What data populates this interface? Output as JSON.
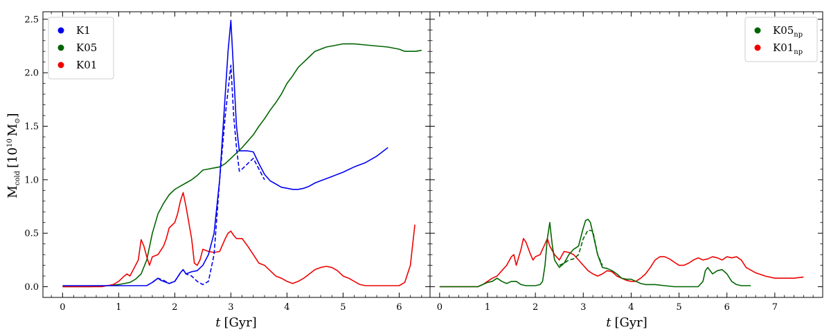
{
  "chart_data": [
    {
      "type": "line",
      "panel": "left",
      "xlabel_italic": "t",
      "xlabel_unit": "[Gyr]",
      "ylabel_main": "M",
      "ylabel_sub": "cold",
      "ylabel_unit_pre": "[10",
      "ylabel_unit_exp": "10",
      "ylabel_unit_post": "M",
      "ylabel_unit_sun": "⊙",
      "ylabel_unit_close": "]",
      "xlim": [
        -0.35,
        6.55
      ],
      "ylim": [
        -0.1,
        2.57
      ],
      "xticks": [
        0,
        1,
        2,
        3,
        4,
        5,
        6
      ],
      "xtick_labels": [
        "0",
        "1",
        "2",
        "3",
        "4",
        "5",
        "6"
      ],
      "yticks": [
        0.0,
        0.5,
        1.0,
        1.5,
        2.0,
        2.5
      ],
      "ytick_labels": [
        "0.0",
        "0.5",
        "1.0",
        "1.5",
        "2.0",
        "2.5"
      ],
      "legend_position": "upper left",
      "legend": [
        {
          "label": "K1",
          "sub": "",
          "color": "#0000ee"
        },
        {
          "label": "K05",
          "sub": "",
          "color": "#006400"
        },
        {
          "label": "K01",
          "sub": "",
          "color": "#ee0000"
        }
      ],
      "series": [
        {
          "name": "K05",
          "color": "#006400",
          "style": "solid",
          "x": [
            0,
            0.5,
            0.8,
            1.0,
            1.1,
            1.2,
            1.3,
            1.4,
            1.5,
            1.6,
            1.7,
            1.8,
            1.9,
            2.0,
            2.1,
            2.2,
            2.3,
            2.4,
            2.5,
            2.6,
            2.7,
            2.8,
            2.9,
            3.0,
            3.1,
            3.2,
            3.3,
            3.4,
            3.5,
            3.6,
            3.7,
            3.8,
            3.9,
            4.0,
            4.1,
            4.2,
            4.3,
            4.4,
            4.5,
            4.6,
            4.7,
            4.8,
            4.9,
            5.0,
            5.2,
            5.4,
            5.6,
            5.8,
            6.0,
            6.1,
            6.2,
            6.3,
            6.4
          ],
          "y": [
            0.0,
            0.0,
            0.01,
            0.02,
            0.03,
            0.04,
            0.07,
            0.12,
            0.25,
            0.5,
            0.68,
            0.78,
            0.86,
            0.91,
            0.94,
            0.97,
            1.0,
            1.04,
            1.09,
            1.1,
            1.11,
            1.12,
            1.15,
            1.2,
            1.25,
            1.3,
            1.36,
            1.42,
            1.5,
            1.57,
            1.65,
            1.72,
            1.8,
            1.9,
            1.97,
            2.05,
            2.1,
            2.15,
            2.2,
            2.22,
            2.24,
            2.25,
            2.26,
            2.27,
            2.27,
            2.26,
            2.25,
            2.24,
            2.22,
            2.2,
            2.2,
            2.2,
            2.21
          ]
        },
        {
          "name": "K01",
          "color": "#ee0000",
          "style": "solid",
          "x": [
            0,
            0.7,
            0.9,
            1.0,
            1.1,
            1.15,
            1.2,
            1.3,
            1.35,
            1.4,
            1.45,
            1.5,
            1.55,
            1.6,
            1.7,
            1.8,
            1.85,
            1.9,
            2.0,
            2.05,
            2.1,
            2.15,
            2.2,
            2.3,
            2.35,
            2.4,
            2.45,
            2.5,
            2.6,
            2.7,
            2.8,
            2.9,
            2.95,
            3.0,
            3.05,
            3.1,
            3.2,
            3.3,
            3.4,
            3.5,
            3.6,
            3.7,
            3.8,
            3.9,
            4.0,
            4.1,
            4.2,
            4.3,
            4.4,
            4.5,
            4.6,
            4.7,
            4.8,
            4.9,
            5.0,
            5.1,
            5.2,
            5.3,
            5.4,
            5.6,
            5.8,
            6.0,
            6.1,
            6.2,
            6.28
          ],
          "y": [
            0.0,
            0.0,
            0.02,
            0.05,
            0.1,
            0.12,
            0.1,
            0.2,
            0.25,
            0.44,
            0.38,
            0.28,
            0.2,
            0.28,
            0.3,
            0.38,
            0.45,
            0.55,
            0.6,
            0.68,
            0.8,
            0.88,
            0.75,
            0.45,
            0.22,
            0.2,
            0.25,
            0.35,
            0.33,
            0.32,
            0.33,
            0.45,
            0.5,
            0.52,
            0.48,
            0.45,
            0.45,
            0.38,
            0.3,
            0.22,
            0.2,
            0.15,
            0.1,
            0.08,
            0.05,
            0.03,
            0.05,
            0.08,
            0.12,
            0.16,
            0.18,
            0.19,
            0.18,
            0.15,
            0.1,
            0.08,
            0.05,
            0.02,
            0.01,
            0.01,
            0.01,
            0.01,
            0.04,
            0.2,
            0.58
          ]
        },
        {
          "name": "K1",
          "color": "#0000ee",
          "style": "solid",
          "x": [
            0,
            1.0,
            1.5,
            1.6,
            1.7,
            1.75,
            1.8,
            1.9,
            2.0,
            2.1,
            2.15,
            2.2,
            2.3,
            2.4,
            2.5,
            2.6,
            2.7,
            2.8,
            2.9,
            2.95,
            3.0,
            3.05,
            3.1,
            3.15,
            3.2,
            3.3,
            3.4,
            3.5,
            3.6,
            3.7,
            3.8,
            3.9,
            4.0,
            4.1,
            4.2,
            4.3,
            4.4,
            4.5,
            4.6,
            4.8,
            5.0,
            5.2,
            5.4,
            5.6,
            5.8
          ],
          "y": [
            0.01,
            0.01,
            0.01,
            0.04,
            0.08,
            0.06,
            0.05,
            0.03,
            0.05,
            0.13,
            0.16,
            0.12,
            0.14,
            0.15,
            0.2,
            0.3,
            0.5,
            1.0,
            1.8,
            2.2,
            2.49,
            2.0,
            1.5,
            1.27,
            1.27,
            1.27,
            1.26,
            1.15,
            1.05,
            0.99,
            0.96,
            0.93,
            0.92,
            0.91,
            0.91,
            0.92,
            0.94,
            0.97,
            0.99,
            1.03,
            1.07,
            1.12,
            1.16,
            1.22,
            1.3
          ]
        },
        {
          "name": "",
          "color": "#0000ee",
          "style": "dashed",
          "x": [
            1.6,
            1.7,
            1.8,
            1.9,
            2.0,
            2.1,
            2.15,
            2.2,
            2.3,
            2.4,
            2.5,
            2.6,
            2.7,
            2.8,
            2.9,
            3.0,
            3.05,
            3.1,
            3.15,
            3.2,
            3.3,
            3.4,
            3.5,
            3.6
          ],
          "y": [
            0.04,
            0.08,
            0.06,
            0.03,
            0.05,
            0.13,
            0.16,
            0.12,
            0.1,
            0.05,
            0.02,
            0.05,
            0.3,
            1.0,
            1.6,
            2.07,
            1.6,
            1.3,
            1.08,
            1.1,
            1.15,
            1.2,
            1.1,
            1.0
          ]
        }
      ]
    },
    {
      "type": "line",
      "panel": "right",
      "xlabel_italic": "t",
      "xlabel_unit": "[Gyr]",
      "xlim": [
        -0.2,
        8.0
      ],
      "ylim": [
        -0.1,
        2.57
      ],
      "xticks": [
        0,
        1,
        2,
        3,
        4,
        5,
        6,
        7
      ],
      "xtick_labels": [
        "0",
        "1",
        "2",
        "3",
        "4",
        "5",
        "6",
        "7"
      ],
      "yticks": [
        0.0,
        0.5,
        1.0,
        1.5,
        2.0,
        2.5
      ],
      "legend_position": "upper right",
      "legend": [
        {
          "label": "K05",
          "sub": "np",
          "color": "#006400"
        },
        {
          "label": "K01",
          "sub": "np",
          "color": "#ee0000"
        }
      ],
      "series": [
        {
          "name": "K01np",
          "color": "#ee0000",
          "style": "solid",
          "x": [
            0,
            0.8,
            0.9,
            1.0,
            1.1,
            1.2,
            1.3,
            1.4,
            1.5,
            1.55,
            1.6,
            1.7,
            1.75,
            1.8,
            1.9,
            1.95,
            2.0,
            2.1,
            2.2,
            2.25,
            2.3,
            2.4,
            2.5,
            2.6,
            2.7,
            2.8,
            2.9,
            3.0,
            3.1,
            3.2,
            3.3,
            3.4,
            3.5,
            3.6,
            3.7,
            3.8,
            3.9,
            4.0,
            4.1,
            4.2,
            4.3,
            4.4,
            4.5,
            4.6,
            4.7,
            4.8,
            4.9,
            5.0,
            5.1,
            5.2,
            5.3,
            5.4,
            5.5,
            5.6,
            5.7,
            5.8,
            5.9,
            6.0,
            6.1,
            6.2,
            6.3,
            6.4,
            6.6,
            6.8,
            7.0,
            7.2,
            7.4,
            7.6
          ],
          "y": [
            0.0,
            0.0,
            0.02,
            0.05,
            0.08,
            0.1,
            0.15,
            0.2,
            0.28,
            0.3,
            0.2,
            0.35,
            0.45,
            0.42,
            0.3,
            0.25,
            0.28,
            0.3,
            0.4,
            0.45,
            0.38,
            0.3,
            0.25,
            0.33,
            0.32,
            0.3,
            0.25,
            0.2,
            0.15,
            0.12,
            0.1,
            0.12,
            0.15,
            0.14,
            0.1,
            0.08,
            0.06,
            0.05,
            0.05,
            0.08,
            0.12,
            0.18,
            0.25,
            0.28,
            0.28,
            0.26,
            0.23,
            0.2,
            0.2,
            0.22,
            0.25,
            0.27,
            0.25,
            0.26,
            0.28,
            0.27,
            0.25,
            0.28,
            0.27,
            0.28,
            0.25,
            0.18,
            0.13,
            0.1,
            0.08,
            0.08,
            0.08,
            0.09
          ]
        },
        {
          "name": "K05np",
          "color": "#006400",
          "style": "solid",
          "x": [
            0,
            0.8,
            0.9,
            1.0,
            1.1,
            1.2,
            1.3,
            1.4,
            1.5,
            1.6,
            1.7,
            1.8,
            1.9,
            2.0,
            2.1,
            2.15,
            2.2,
            2.25,
            2.3,
            2.35,
            2.4,
            2.5,
            2.6,
            2.7,
            2.8,
            2.9,
            3.0,
            3.05,
            3.1,
            3.15,
            3.2,
            3.3,
            3.4,
            3.5,
            3.6,
            3.7,
            3.8,
            3.9,
            4.0,
            4.1,
            4.2,
            4.3,
            4.5,
            4.7,
            4.9,
            5.1,
            5.3,
            5.4,
            5.5,
            5.55,
            5.6,
            5.7,
            5.8,
            5.9,
            6.0,
            6.1,
            6.2,
            6.3,
            6.5
          ],
          "y": [
            0.0,
            0.0,
            0.02,
            0.04,
            0.05,
            0.08,
            0.05,
            0.03,
            0.05,
            0.05,
            0.02,
            0.01,
            0.01,
            0.01,
            0.02,
            0.05,
            0.2,
            0.45,
            0.6,
            0.4,
            0.25,
            0.18,
            0.22,
            0.3,
            0.35,
            0.38,
            0.55,
            0.62,
            0.63,
            0.6,
            0.5,
            0.3,
            0.18,
            0.17,
            0.15,
            0.12,
            0.08,
            0.07,
            0.07,
            0.05,
            0.03,
            0.02,
            0.02,
            0.01,
            0.0,
            0.0,
            0.0,
            0.0,
            0.05,
            0.15,
            0.18,
            0.12,
            0.15,
            0.16,
            0.12,
            0.05,
            0.02,
            0.01,
            0.01
          ]
        },
        {
          "name": "",
          "color": "#006400",
          "style": "dashed",
          "x": [
            2.5,
            2.6,
            2.7,
            2.8,
            2.9,
            3.0,
            3.1,
            3.2,
            3.3,
            3.4
          ],
          "y": [
            0.2,
            0.22,
            0.25,
            0.26,
            0.3,
            0.45,
            0.53,
            0.52,
            0.3,
            0.2
          ]
        }
      ]
    }
  ]
}
